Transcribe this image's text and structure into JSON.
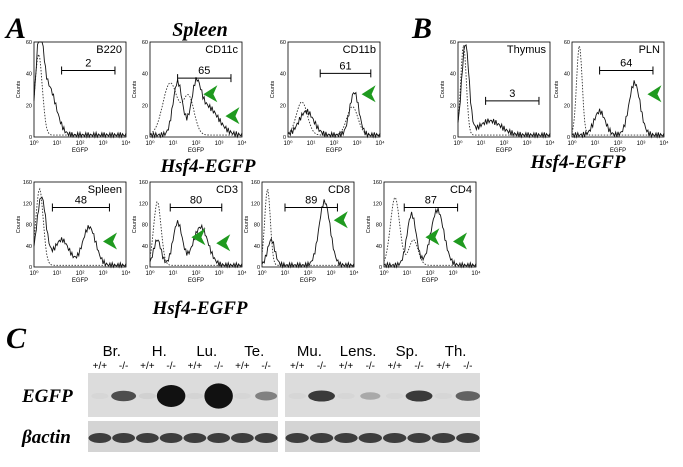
{
  "panel_a": {
    "letter": "A",
    "title": "Spleen",
    "caption_top": "Hsf4-EGFP",
    "caption_bottom": "Hsf4-EGFP",
    "y_axis": "Counts",
    "x_axis": "EGFP",
    "x_ticks": [
      "10⁰",
      "10¹",
      "10²",
      "10³",
      "10⁴"
    ],
    "histograms": [
      {
        "label": "B220",
        "gate": "2",
        "y_ticks": [
          "0",
          "20",
          "40",
          "60"
        ]
      },
      {
        "label": "CD11c",
        "gate": "65",
        "y_ticks": [
          "0",
          "20",
          "40",
          "60"
        ]
      },
      {
        "label": "CD11b",
        "gate": "61",
        "y_ticks": [
          "0",
          "20",
          "40",
          "60"
        ]
      },
      {
        "label": "Spleen",
        "gate": "48",
        "y_ticks": [
          "0",
          "40",
          "80",
          "120",
          "160"
        ]
      },
      {
        "label": "CD3",
        "gate": "80",
        "y_ticks": [
          "0",
          "40",
          "80",
          "120",
          "160"
        ]
      },
      {
        "label": "CD8",
        "gate": "89",
        "y_ticks": [
          "0",
          "40",
          "80",
          "120",
          "160"
        ]
      },
      {
        "label": "CD4",
        "gate": "87",
        "y_ticks": [
          "0",
          "40",
          "80",
          "120",
          "160"
        ]
      }
    ]
  },
  "panel_b": {
    "letter": "B",
    "caption": "Hsf4-EGFP",
    "y_axis": "Counts",
    "x_axis": "EGFP",
    "x_ticks": [
      "10⁰",
      "10¹",
      "10²",
      "10³",
      "10⁴"
    ],
    "histograms": [
      {
        "label": "Thymus",
        "gate": "3",
        "y_ticks": [
          "0",
          "20",
          "40",
          "60"
        ]
      },
      {
        "label": "PLN",
        "gate": "64",
        "y_ticks": [
          "0",
          "20",
          "40",
          "60"
        ]
      }
    ]
  },
  "panel_c": {
    "letter": "C",
    "tissues": [
      "Br.",
      "H.",
      "Lu.",
      "Te.",
      "Mu.",
      "Lens.",
      "Sp.",
      "Th."
    ],
    "genotypes": [
      "+/+",
      "-/-"
    ],
    "rows": [
      "EGFP",
      "βactin"
    ]
  }
}
